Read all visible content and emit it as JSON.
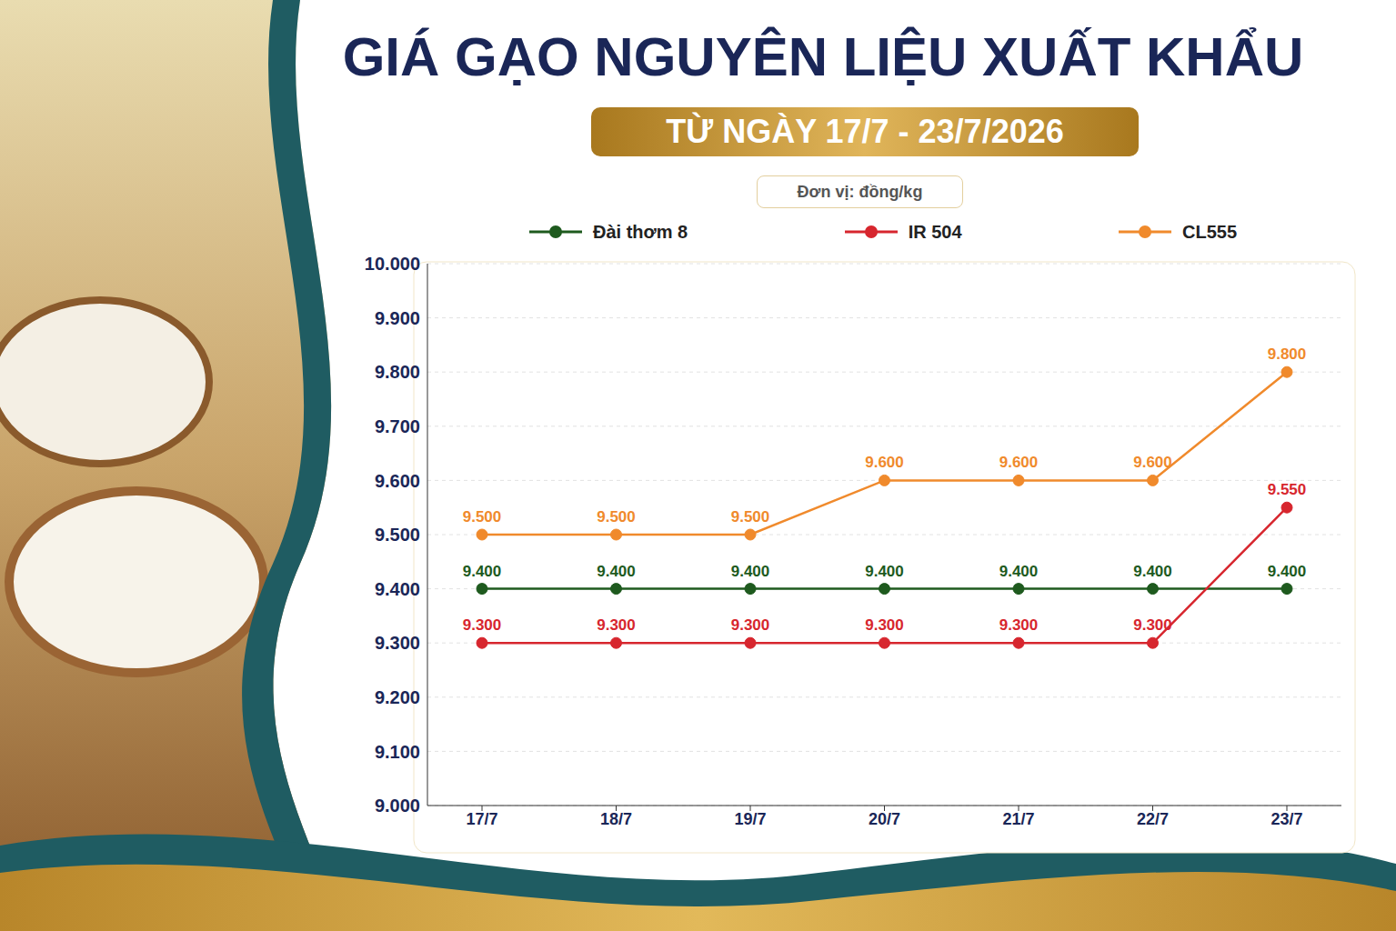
{
  "chart_data": {
    "type": "line",
    "title": "GIÁ GẠO NGUYÊN LIỆU XUẤT KHẨU",
    "subtitle": "TỪ NGÀY 17/7 - 23/7/2026",
    "unit_label": "Đơn vị: đồng/kg",
    "categories": [
      "17/7",
      "18/7",
      "19/7",
      "20/7",
      "21/7",
      "22/7",
      "23/7"
    ],
    "series": [
      {
        "name": "Đài thơm 8",
        "color": "#1e5a1e",
        "marker": "circle",
        "values": [
          9400,
          9400,
          9400,
          9400,
          9400,
          9400,
          9400
        ],
        "value_labels": [
          "9.400",
          "9.400",
          "9.400",
          "9.400",
          "9.400",
          "9.400",
          "9.400"
        ]
      },
      {
        "name": "IR 504",
        "color": "#d7262e",
        "marker": "circle",
        "values": [
          9300,
          9300,
          9300,
          9300,
          9300,
          9300,
          9550
        ],
        "value_labels": [
          "9.300",
          "9.300",
          "9.300",
          "9.300",
          "9.300",
          "9.300",
          "9.550"
        ]
      },
      {
        "name": "CL555",
        "color": "#f08a2c",
        "marker": "circle",
        "values": [
          9500,
          9500,
          9500,
          9600,
          9600,
          9600,
          9800
        ],
        "value_labels": [
          "9.500",
          "9.500",
          "9.500",
          "9.600",
          "9.600",
          "9.600",
          "9.800"
        ]
      }
    ],
    "ylim": [
      9000,
      10000
    ],
    "yticks": [
      {
        "value": 9000,
        "label": "9.000"
      },
      {
        "value": 9100,
        "label": "9.100"
      },
      {
        "value": 9200,
        "label": "9.200"
      },
      {
        "value": 9300,
        "label": "9.300"
      },
      {
        "value": 9400,
        "label": "9.400"
      },
      {
        "value": 9500,
        "label": "9.500"
      },
      {
        "value": 9600,
        "label": "9.600"
      },
      {
        "value": 9700,
        "label": "9.700"
      },
      {
        "value": 9800,
        "label": "9.800"
      },
      {
        "value": 9900,
        "label": "9.900"
      },
      {
        "value": 10000,
        "label": "10.000"
      }
    ],
    "grid": true,
    "legend": "top",
    "data_labels": true
  }
}
